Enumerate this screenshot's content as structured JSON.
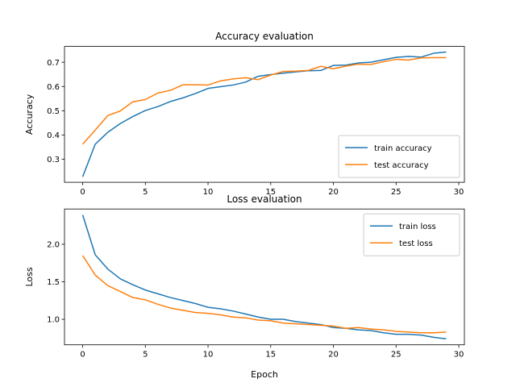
{
  "chart_data": [
    {
      "type": "line",
      "title": "Accuracy evaluation",
      "xlabel": "",
      "ylabel": "Accuracy",
      "xlim": [
        -1.45,
        30.45
      ],
      "ylim": [
        0.205,
        0.765
      ],
      "xticks": [
        0,
        5,
        10,
        15,
        20,
        25,
        30
      ],
      "yticks": [
        0.3,
        0.4,
        0.5,
        0.6,
        0.7
      ],
      "grid": false,
      "legend": "lower-right",
      "x": [
        0,
        1,
        2,
        3,
        4,
        5,
        6,
        7,
        8,
        9,
        10,
        11,
        12,
        13,
        14,
        15,
        16,
        17,
        18,
        19,
        20,
        21,
        22,
        23,
        24,
        25,
        26,
        27,
        28,
        29
      ],
      "series": [
        {
          "name": "train accuracy",
          "color": "#1f77b4",
          "values": [
            0.228,
            0.362,
            0.411,
            0.447,
            0.476,
            0.501,
            0.517,
            0.538,
            0.553,
            0.571,
            0.592,
            0.599,
            0.606,
            0.618,
            0.642,
            0.649,
            0.655,
            0.66,
            0.665,
            0.666,
            0.687,
            0.688,
            0.697,
            0.7,
            0.71,
            0.72,
            0.724,
            0.721,
            0.737,
            0.742
          ]
        },
        {
          "name": "test accuracy",
          "color": "#ff7f0e",
          "values": [
            0.362,
            0.42,
            0.48,
            0.499,
            0.537,
            0.546,
            0.573,
            0.584,
            0.607,
            0.607,
            0.606,
            0.623,
            0.631,
            0.636,
            0.628,
            0.647,
            0.662,
            0.663,
            0.666,
            0.683,
            0.673,
            0.684,
            0.692,
            0.691,
            0.702,
            0.712,
            0.709,
            0.718,
            0.719,
            0.719
          ]
        }
      ]
    },
    {
      "type": "line",
      "title": "Loss evaluation",
      "xlabel": "Epoch",
      "ylabel": "Loss",
      "xlim": [
        -1.45,
        30.45
      ],
      "ylim": [
        0.66,
        2.47
      ],
      "xticks": [
        0,
        5,
        10,
        15,
        20,
        25,
        30
      ],
      "yticks": [
        1.0,
        1.5,
        2.0
      ],
      "ytick_labels": [
        "1.0",
        "1.5",
        "2.0"
      ],
      "grid": false,
      "legend": "upper-right",
      "x": [
        0,
        1,
        2,
        3,
        4,
        5,
        6,
        7,
        8,
        9,
        10,
        11,
        12,
        13,
        14,
        15,
        16,
        17,
        18,
        19,
        20,
        21,
        22,
        23,
        24,
        25,
        26,
        27,
        28,
        29
      ],
      "series": [
        {
          "name": "train loss",
          "color": "#1f77b4",
          "values": [
            2.39,
            1.86,
            1.67,
            1.54,
            1.46,
            1.39,
            1.34,
            1.29,
            1.25,
            1.21,
            1.16,
            1.14,
            1.11,
            1.07,
            1.03,
            1.0,
            1.0,
            0.97,
            0.95,
            0.93,
            0.89,
            0.88,
            0.86,
            0.85,
            0.82,
            0.8,
            0.8,
            0.79,
            0.76,
            0.74
          ]
        },
        {
          "name": "test loss",
          "color": "#ff7f0e",
          "values": [
            1.85,
            1.59,
            1.45,
            1.37,
            1.29,
            1.26,
            1.2,
            1.15,
            1.12,
            1.09,
            1.08,
            1.06,
            1.03,
            1.02,
            0.99,
            0.98,
            0.95,
            0.94,
            0.93,
            0.92,
            0.91,
            0.88,
            0.89,
            0.87,
            0.86,
            0.84,
            0.83,
            0.82,
            0.82,
            0.83
          ]
        }
      ]
    }
  ]
}
